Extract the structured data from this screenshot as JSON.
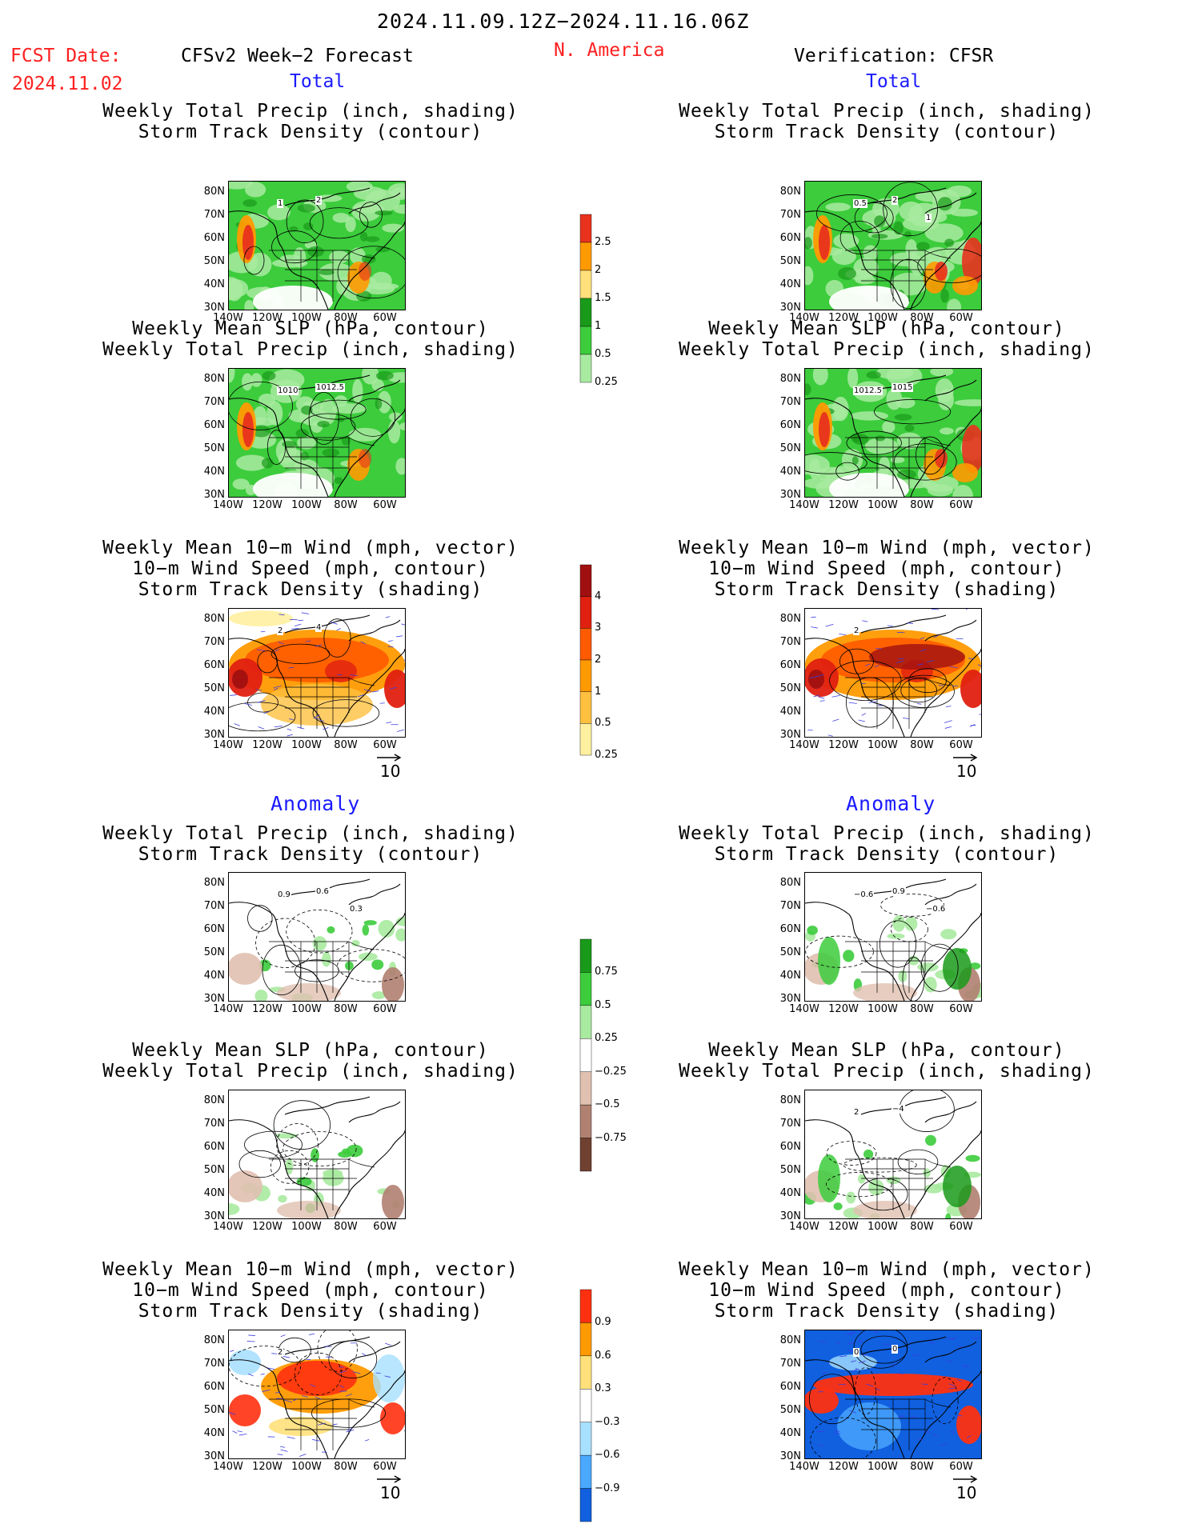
{
  "header": {
    "period": "2024.11.09.12Z−2024.11.16.06Z",
    "region": "N. America",
    "fcst_label": "FCST Date:",
    "fcst_date": "2024.11.02",
    "left_title": "CFSv2 Week−2 Forecast",
    "right_title": "Verification: CFSR",
    "total": "Total",
    "anomaly": "Anomaly"
  },
  "titles": {
    "precip_storm": [
      "Weekly Total Precip (inch, shading)",
      "Storm Track Density (contour)"
    ],
    "slp_precip": [
      "Weekly Mean SLP (hPa, contour)",
      "Weekly Total Precip (inch, shading)"
    ],
    "wind_storm": [
      "Weekly Mean 10−m Wind (mph, vector)",
      "10−m Wind Speed (mph, contour)",
      "Storm Track Density (shading)"
    ]
  },
  "axes": {
    "lat": [
      "80N",
      "70N",
      "60N",
      "50N",
      "40N",
      "30N"
    ],
    "lon": [
      "140W",
      "120W",
      "100W",
      "80W",
      "60W"
    ]
  },
  "vector_ref": "10",
  "colorbars": {
    "precip_total": {
      "labels": [
        "2.5",
        "2",
        "1.5",
        "1",
        "0.5",
        "0.25"
      ],
      "colors": [
        "#e8321e",
        "#ff9a00",
        "#ffe07a",
        "#1a9a1a",
        "#3ccc3c",
        "#a8eaa0"
      ]
    },
    "storm_total": {
      "labels": [
        "4",
        "3",
        "2",
        "1",
        "0.5",
        "0.25"
      ],
      "colors": [
        "#a01010",
        "#e02010",
        "#ff5a00",
        "#ff9a00",
        "#ffc040",
        "#fff0a0"
      ]
    },
    "precip_anom": {
      "labels": [
        "0.75",
        "0.5",
        "0.25",
        "−0.25",
        "−0.5",
        "−0.75"
      ],
      "colors": [
        "#1a9a1a",
        "#3ccc3c",
        "#a8eaa0",
        "#ffffff",
        "#e0c0b0",
        "#b08070",
        "#704030"
      ]
    },
    "storm_anom": {
      "labels": [
        "0.9",
        "0.6",
        "0.3",
        "−0.3",
        "−0.6",
        "−0.9"
      ],
      "colors": [
        "#ff3010",
        "#ff9a00",
        "#ffe07a",
        "#ffffff",
        "#a8e0ff",
        "#4aa8ff",
        "#1060e0"
      ]
    }
  },
  "map_labels": {
    "l1": [
      "1",
      "2"
    ],
    "r1": [
      "0.5",
      "2",
      "1"
    ],
    "l2": [
      "1010",
      "1012.5"
    ],
    "r2": [
      "1012.5",
      "1015"
    ],
    "l3": [
      "2",
      "4"
    ],
    "r3": [
      "2"
    ],
    "l4": [
      "0.9",
      "0.6",
      "0.3"
    ],
    "r4": [
      "−0.6",
      "0.9",
      "−0.6"
    ],
    "r5": [
      "2",
      "−4"
    ],
    "l6": [
      "2"
    ],
    "r6": [
      "0",
      "0"
    ]
  }
}
